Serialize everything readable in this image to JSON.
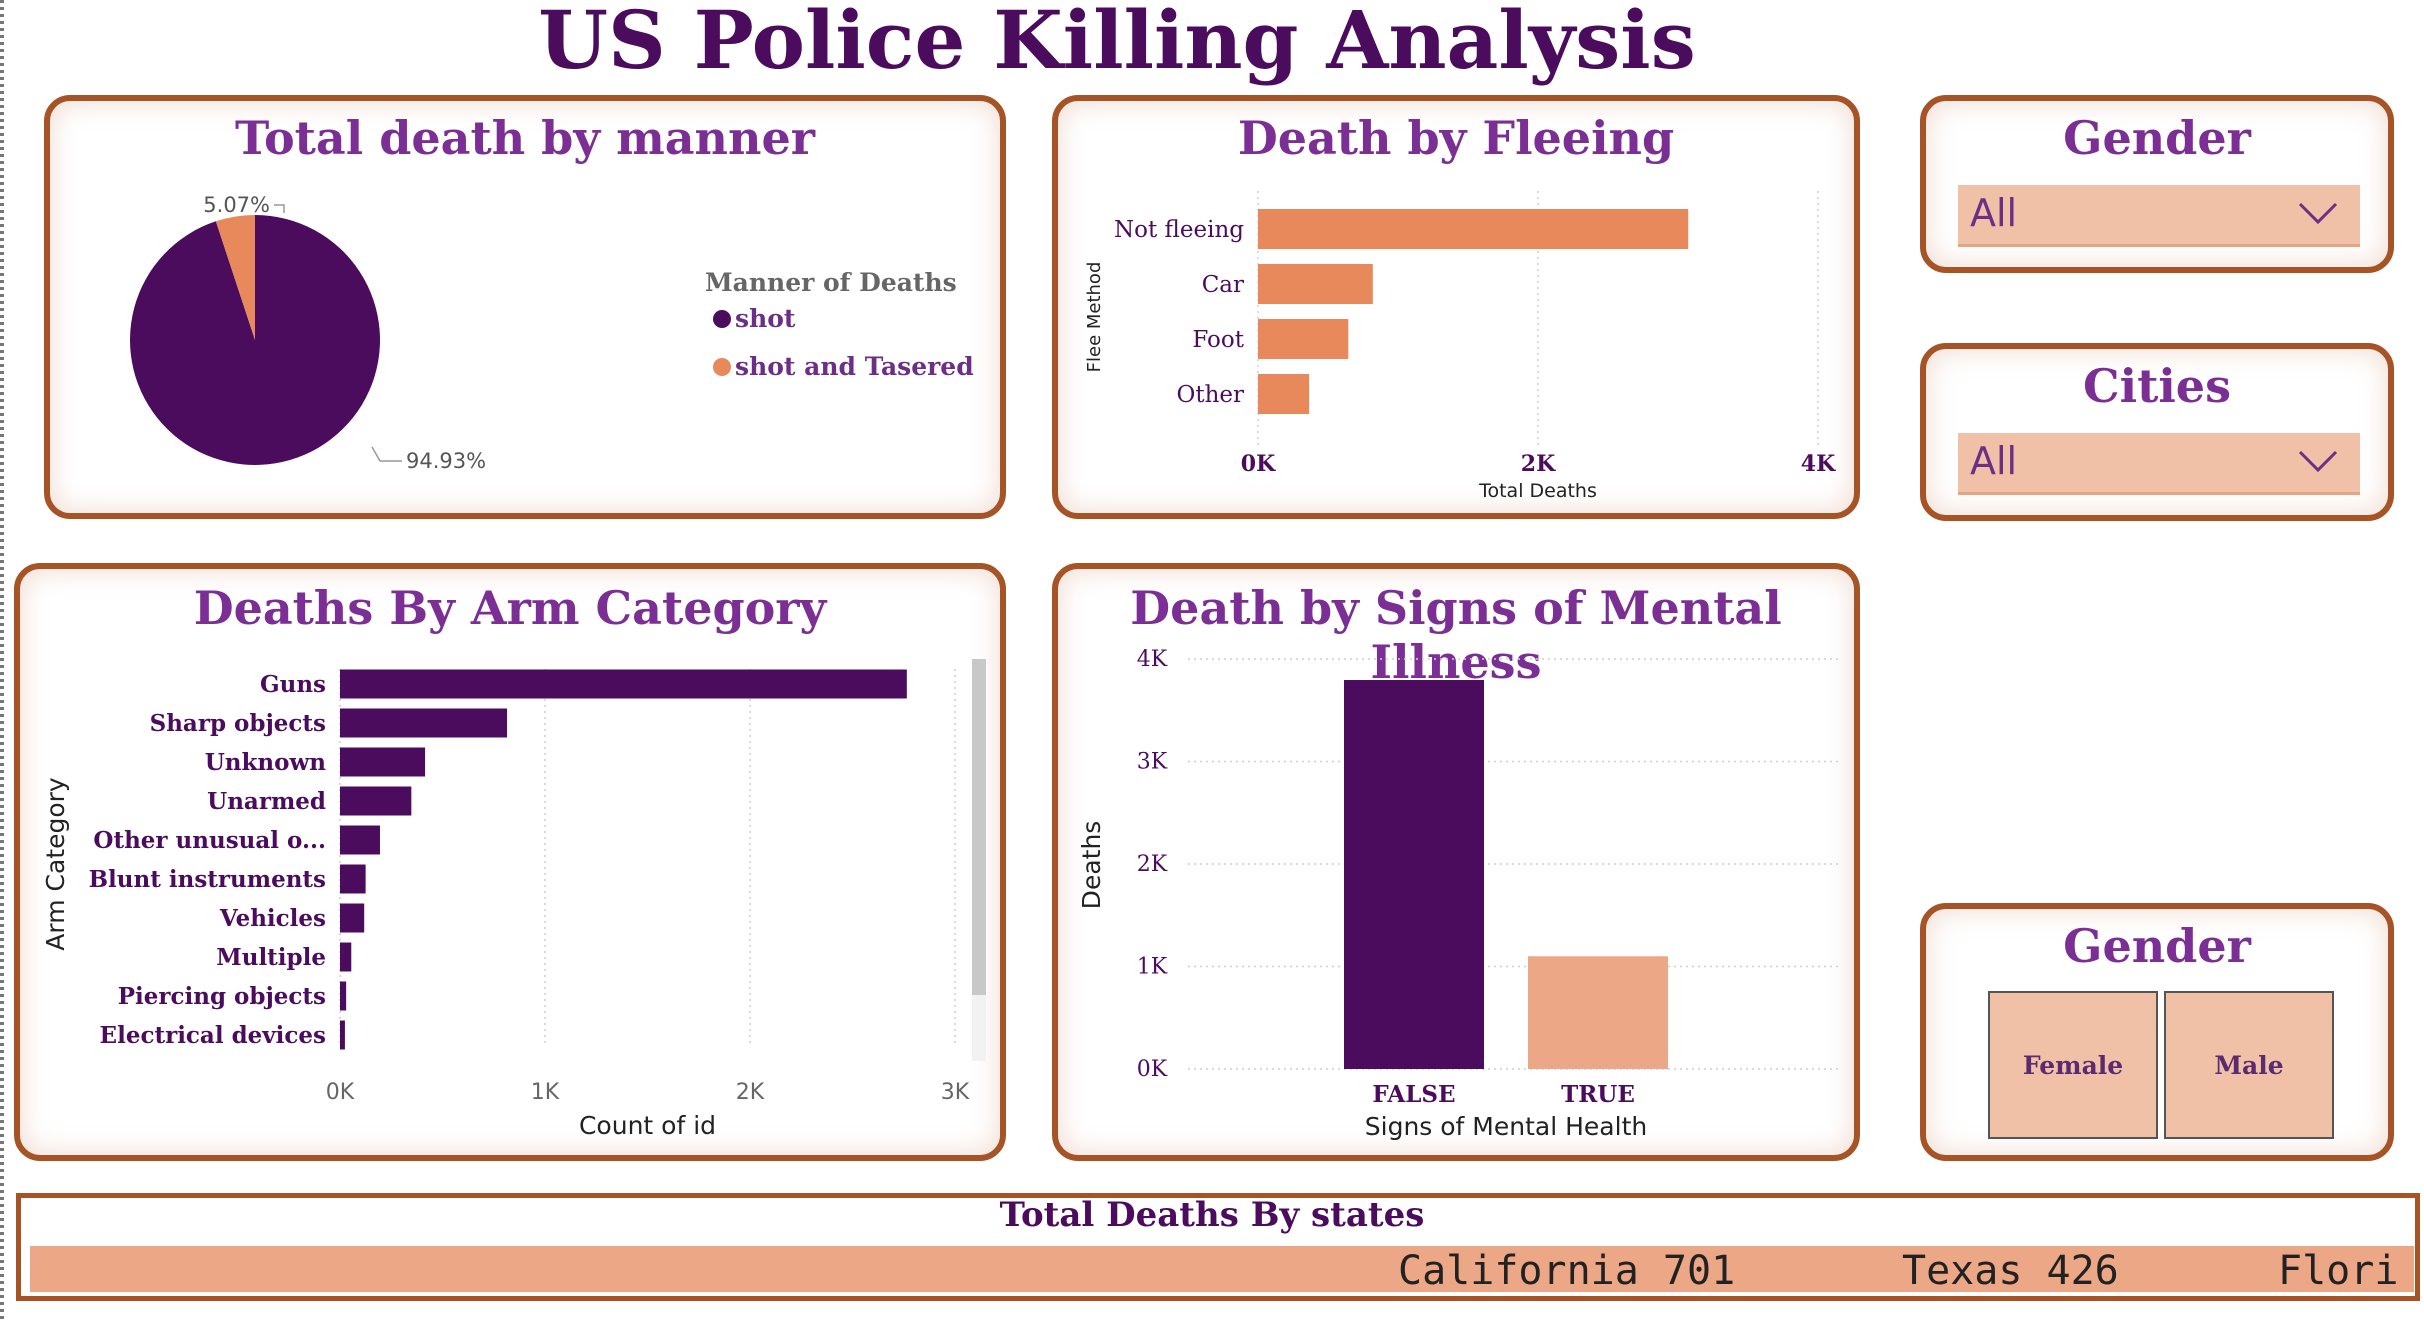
{
  "title": "US Police Killing Analysis",
  "colors": {
    "purple": "#4b0c5e",
    "orange": "#e8895b",
    "light_orange": "#eca787",
    "border": "#a65326"
  },
  "slicers": {
    "gender_dropdown": {
      "title": "Gender",
      "value": "All"
    },
    "cities_dropdown": {
      "title": "Cities",
      "value": "All"
    },
    "gender_tiles": {
      "title": "Gender",
      "options": [
        "Female",
        "Male"
      ]
    }
  },
  "ticker": {
    "title": "Total Deaths By states",
    "items": [
      {
        "state": "California",
        "value": "701"
      },
      {
        "state": "Texas",
        "value": "426"
      },
      {
        "state": "Flori",
        "value": ""
      }
    ]
  },
  "chart_data": [
    {
      "id": "manner",
      "type": "pie",
      "title": "Total death by manner",
      "legend_title": "Manner of Deaths",
      "legend_position": "right",
      "slices": [
        {
          "name": "shot",
          "percent": 94.93,
          "label": "94.93%",
          "color": "#4b0c5e"
        },
        {
          "name": "shot and Tasered",
          "percent": 5.07,
          "label": "5.07%",
          "color": "#e8895b"
        }
      ]
    },
    {
      "id": "fleeing",
      "type": "bar",
      "orientation": "horizontal",
      "title": "Death by Fleeing",
      "categories": [
        "Not fleeing",
        "Car",
        "Foot",
        "Other"
      ],
      "values": [
        3073,
        820,
        645,
        365
      ],
      "xlabel": "Total Deaths",
      "ylabel": "Flee Method",
      "xlim": [
        0,
        4000
      ],
      "ticks": [
        {
          "v": 0,
          "label": "0K"
        },
        {
          "v": 2000,
          "label": "2K"
        },
        {
          "v": 4000,
          "label": "4K"
        }
      ],
      "grid": true,
      "color": "#e8895b"
    },
    {
      "id": "arms",
      "type": "bar",
      "orientation": "horizontal",
      "title": "Deaths By Arm Category",
      "categories": [
        "Guns",
        "Sharp objects",
        "Unknown",
        "Unarmed",
        "Other unusual o...",
        "Blunt instruments",
        "Vehicles",
        "Multiple",
        "Piercing objects",
        "Electrical devices"
      ],
      "values": [
        2765,
        815,
        415,
        348,
        195,
        125,
        118,
        55,
        30,
        24
      ],
      "xlabel": "Count of id",
      "ylabel": "Arm Category",
      "xlim": [
        0,
        3000
      ],
      "ticks": [
        {
          "v": 0,
          "label": "0K"
        },
        {
          "v": 1000,
          "label": "1K"
        },
        {
          "v": 2000,
          "label": "2K"
        },
        {
          "v": 3000,
          "label": "3K"
        }
      ],
      "grid": true,
      "color": "#4b0c5e"
    },
    {
      "id": "mental",
      "type": "bar",
      "orientation": "vertical",
      "title": "Death by Signs of Mental Illness",
      "categories": [
        "FALSE",
        "TRUE"
      ],
      "values": [
        3795,
        1100
      ],
      "colors": [
        "#4b0c5e",
        "#eca787"
      ],
      "xlabel": "Signs of Mental Health",
      "ylabel": "Deaths",
      "ylim": [
        0,
        4000
      ],
      "ticks": [
        {
          "v": 0,
          "label": "0K"
        },
        {
          "v": 1000,
          "label": "1K"
        },
        {
          "v": 2000,
          "label": "2K"
        },
        {
          "v": 3000,
          "label": "3K"
        },
        {
          "v": 4000,
          "label": "4K"
        }
      ],
      "grid": true
    }
  ]
}
